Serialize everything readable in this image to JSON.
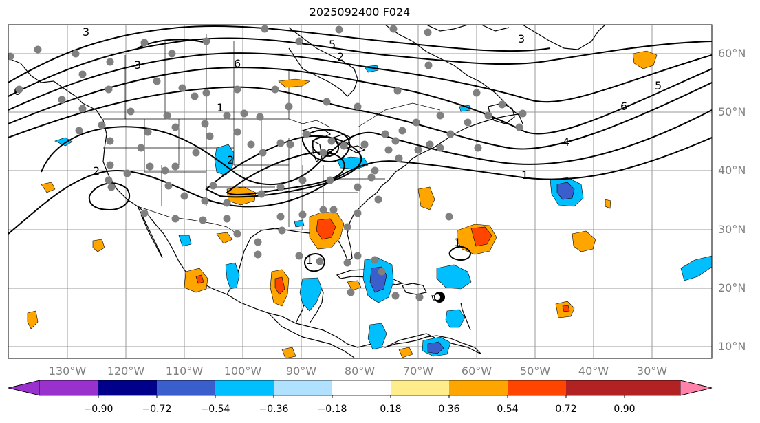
{
  "title": "2025092400 F024",
  "lat_labels": [
    "60°N",
    "50°N",
    "40°N",
    "30°N",
    "20°N",
    "10°N"
  ],
  "lon_labels": [
    "130°W",
    "120°W",
    "110°W",
    "100°W",
    "90°W",
    "80°W",
    "70°W",
    "60°W",
    "50°W",
    "40°W",
    "30°W"
  ],
  "colorbar": {
    "colors": [
      "#9932cc",
      "#00008b",
      "#3a5fcd",
      "#00bfff",
      "#b0e2ff",
      "#ffffff",
      "#ffec8b",
      "#ffa500",
      "#ff4500",
      "#b22222",
      "#ff82ab"
    ],
    "labels": [
      "−0.90",
      "−0.72",
      "−0.54",
      "−0.36",
      "−0.18",
      "0.18",
      "0.36",
      "0.54",
      "0.72",
      "0.90"
    ]
  },
  "contour_labels": [
    "3",
    "5",
    "2",
    "6",
    "3",
    "6",
    "1",
    "2",
    "6",
    "3",
    "5",
    "6",
    "4",
    "1",
    "1",
    "2",
    "1"
  ],
  "tropical_cyclone_marker": "hurricane-symbol"
}
